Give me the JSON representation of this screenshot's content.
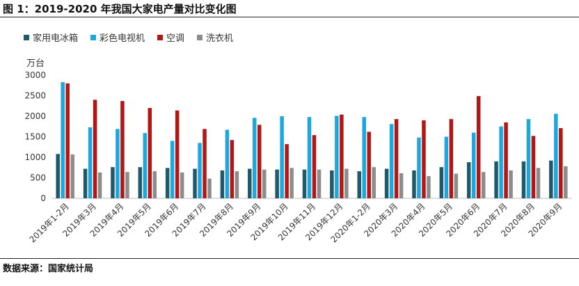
{
  "figure": {
    "title": "图 1：2019-2020 年我国大家电产量对比变化图",
    "source": "数据来源：国家统计局"
  },
  "chart_data": {
    "type": "bar",
    "ylabel": "万台",
    "ylim": [
      0,
      3000
    ],
    "yticks": [
      0,
      500,
      1000,
      1500,
      2000,
      2500,
      3000
    ],
    "grid": false,
    "legend_position": "top-left",
    "categories": [
      "2019年1-2月",
      "2019年3月",
      "2019年4月",
      "2019年5月",
      "2019年6月",
      "2019年7月",
      "2019年8月",
      "2019年9月",
      "2019年10月",
      "2019年11月",
      "2019年12月",
      "2020年1-2月",
      "2020年3月",
      "2020年4月",
      "2020年5月",
      "2020年6月",
      "2020年7月",
      "2020年8月",
      "2020年9月"
    ],
    "series": [
      {
        "name": "家用电冰箱",
        "color": "#1f5a6b",
        "values": [
          1080,
          720,
          760,
          760,
          740,
          720,
          680,
          720,
          700,
          700,
          680,
          660,
          720,
          680,
          760,
          880,
          900,
          900,
          920
        ]
      },
      {
        "name": "彩色电视机",
        "color": "#1ea7dc",
        "values": [
          2830,
          1730,
          1690,
          1590,
          1400,
          1350,
          1670,
          1960,
          2000,
          1980,
          2010,
          1980,
          1810,
          1480,
          1500,
          1600,
          1750,
          1930,
          2060
        ]
      },
      {
        "name": "空调",
        "color": "#b01818",
        "values": [
          2800,
          2400,
          2370,
          2200,
          2140,
          1690,
          1420,
          1790,
          1320,
          1540,
          2040,
          1620,
          1930,
          1900,
          1930,
          2490,
          1850,
          1520,
          1710
        ]
      },
      {
        "name": "洗衣机",
        "color": "#8c8c8c",
        "values": [
          1070,
          630,
          640,
          660,
          630,
          480,
          660,
          700,
          740,
          700,
          720,
          760,
          610,
          540,
          600,
          640,
          680,
          740,
          780
        ]
      }
    ]
  }
}
